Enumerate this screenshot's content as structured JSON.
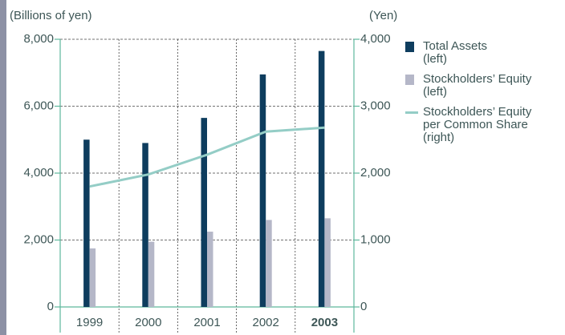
{
  "chart_data": {
    "type": "bar",
    "y_label": "(Billions of yen)",
    "y2_label": "(Yen)",
    "categories": [
      "1999",
      "2000",
      "2001",
      "2002",
      "2003"
    ],
    "series": [
      {
        "name": "Total Assets\n(left)",
        "type": "bar",
        "color": "#0e3d5e",
        "values": [
          5000,
          4900,
          5650,
          6950,
          7650
        ]
      },
      {
        "name": "Stockholders’ Equity\n(left)",
        "type": "bar",
        "color": "#b5b7c8",
        "values": [
          1750,
          1950,
          2250,
          2600,
          2650
        ]
      },
      {
        "name": "Stockholders’ Equity\nper Common Share\n(right)",
        "type": "line",
        "axis": "y2",
        "color": "#94cdc6",
        "values": [
          1800,
          1980,
          2275,
          2620,
          2680
        ]
      }
    ],
    "ylim": [
      0,
      8000
    ],
    "yticks": [
      0,
      {
        "value": 2000,
        "label": "2,000"
      },
      {
        "value": 4000,
        "label": "4,000"
      },
      {
        "value": 6000,
        "label": "6,000"
      },
      {
        "value": 8000,
        "label": "8,000"
      }
    ],
    "y2lim": [
      0,
      4000
    ],
    "y2ticks": [
      0,
      {
        "value": 1000,
        "label": "1,000"
      },
      {
        "value": 2000,
        "label": "2,000"
      },
      {
        "value": 3000,
        "label": "3,000"
      },
      {
        "value": 4000,
        "label": "4,000"
      }
    ],
    "grid": true,
    "legend": "right"
  }
}
